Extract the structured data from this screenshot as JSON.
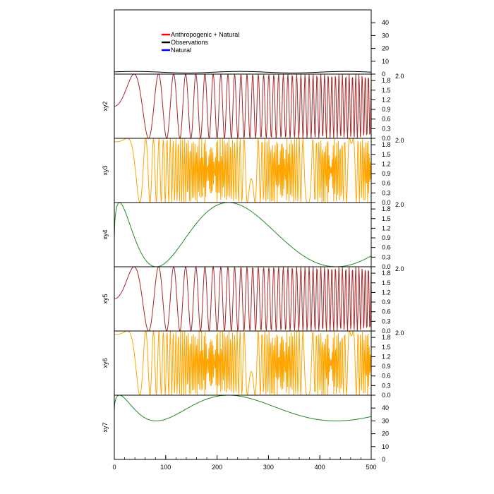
{
  "chart_data": {
    "type": "line",
    "title": "",
    "xlabel": "",
    "xlim": [
      0,
      500
    ],
    "x_ticks": [
      0,
      100,
      200,
      300,
      400,
      500
    ],
    "x_minor_step": 20,
    "legend": {
      "placement": "top-left",
      "entries": [
        {
          "label": "Anthropogenic + Natural",
          "color": "#ff0000"
        },
        {
          "label": "Observations",
          "color": "#000000"
        },
        {
          "label": "Natural",
          "color": "#0000ff"
        }
      ]
    },
    "panels": [
      {
        "ylabel": "",
        "ylim": [
          0,
          50
        ],
        "y_ticks": [
          0,
          10,
          20,
          30,
          40
        ],
        "tick_labels": [
          "0",
          "10",
          "20",
          "30",
          "40"
        ],
        "series": {
          "name": "Observations",
          "color": "#000000",
          "model": "offset + amp*cos(2*pi*(x - shift)/period)",
          "params": {
            "offset": 1.5,
            "amp": 0.6,
            "shift": 40,
            "period": 205
          }
        }
      },
      {
        "ylabel": "xy2",
        "ylim": [
          0,
          2
        ],
        "y_ticks": [
          0,
          0.3,
          0.6,
          0.9,
          1.2,
          1.5,
          1.8,
          2.0
        ],
        "tick_labels": [
          "0.0",
          "0.3",
          "0.6",
          "0.9",
          "1.2",
          "1.5",
          "1.8",
          "2.0"
        ],
        "series": {
          "name": "xy2",
          "color": "#a52a2a",
          "model": "1 + sin(k2*x^2)",
          "params": {
            "k2": 0.00106
          }
        }
      },
      {
        "ylabel": "xy3",
        "ylim": [
          0,
          2
        ],
        "y_ticks": [
          0,
          0.3,
          0.6,
          0.9,
          1.2,
          1.5,
          1.8,
          2.0
        ],
        "tick_labels": [
          "0.0",
          "0.3",
          "0.6",
          "0.9",
          "1.2",
          "1.5",
          "1.8",
          "2.0"
        ],
        "series": {
          "name": "xy3",
          "color": "#ffa500",
          "model": "1 + sin(d + k3*x^3)",
          "params": {
            "d": 1.1,
            "k3": 2.95e-05
          }
        }
      },
      {
        "ylabel": "xy4",
        "ylim": [
          0,
          2
        ],
        "y_ticks": [
          0,
          0.3,
          0.6,
          0.9,
          1.2,
          1.5,
          1.8,
          2.0
        ],
        "tick_labels": [
          "0.0",
          "0.3",
          "0.6",
          "0.9",
          "1.2",
          "1.5",
          "1.8",
          "2.0"
        ],
        "series": {
          "name": "xy4",
          "color": "#228b22",
          "model": "1 + sin(d + ks*sqrt(x))",
          "params": {
            "d": -0.12,
            "ks": 0.535
          }
        }
      },
      {
        "ylabel": "xy5",
        "ylim": [
          0,
          2
        ],
        "y_ticks": [
          0,
          0.3,
          0.6,
          0.9,
          1.2,
          1.5,
          1.8,
          2.0
        ],
        "tick_labels": [
          "0.0",
          "0.3",
          "0.6",
          "0.9",
          "1.2",
          "1.5",
          "1.8",
          "2.0"
        ],
        "series": {
          "name": "xy5",
          "color": "#a52a2a",
          "model": "1 + sin(k2*x^2)",
          "params": {
            "k2": 0.00106
          }
        }
      },
      {
        "ylabel": "xy6",
        "ylim": [
          0,
          2
        ],
        "y_ticks": [
          0,
          0.3,
          0.6,
          0.9,
          1.2,
          1.5,
          1.8,
          2.0
        ],
        "tick_labels": [
          "0.0",
          "0.3",
          "0.6",
          "0.9",
          "1.2",
          "1.5",
          "1.8",
          "2.0"
        ],
        "series": {
          "name": "xy6",
          "color": "#ffa500",
          "model": "1 + sin(d + k3*x^3)",
          "params": {
            "d": 1.1,
            "k3": 2.95e-05
          }
        }
      },
      {
        "ylabel": "xy7",
        "ylim": [
          0,
          50
        ],
        "y_ticks": [
          0,
          10,
          20,
          30,
          40
        ],
        "tick_labels": [
          "0",
          "10",
          "20",
          "30",
          "40"
        ],
        "series": {
          "name": "xy7",
          "color": "#228b22",
          "model": "40 + 10*sin(d + ks*sqrt(x))",
          "params": {
            "d": -0.12,
            "ks": 0.535
          }
        }
      }
    ]
  }
}
